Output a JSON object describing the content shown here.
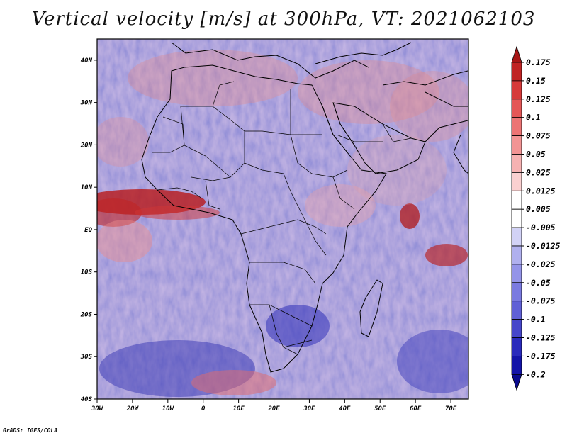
{
  "title": "Vertical velocity [m/s] at 300hPa, VT: 2021062103",
  "footer": "GrADS: IGES/COLA",
  "map": {
    "lon_labels": [
      "30W",
      "20W",
      "10W",
      "0",
      "10E",
      "20E",
      "30E",
      "40E",
      "50E",
      "60E",
      "70E"
    ],
    "lat_labels": [
      "40N",
      "30N",
      "20N",
      "10N",
      "EQ",
      "10S",
      "20S",
      "30S",
      "40S"
    ],
    "lon_range": [
      -30,
      75
    ],
    "lat_range": [
      -40,
      45
    ]
  },
  "colorbar": {
    "labels": [
      "0.175",
      "0.15",
      "0.125",
      "0.1",
      "0.075",
      "0.05",
      "0.025",
      "0.0125",
      "0.005",
      "-0.005",
      "-0.0125",
      "-0.025",
      "-0.05",
      "-0.075",
      "-0.1",
      "-0.125",
      "-0.175",
      "-0.2"
    ],
    "colors": [
      "#a81616",
      "#c02424",
      "#d63a3a",
      "#e45656",
      "#ec7474",
      "#f29494",
      "#f6b2b2",
      "#fad0d0",
      "#ffffff",
      "#ffffff",
      "#d2d2f6",
      "#b0b0ee",
      "#9494e8",
      "#7a7ae0",
      "#6060d6",
      "#4646ca",
      "#2a2abc",
      "#1414a8",
      "#0a0a8e"
    ]
  }
}
